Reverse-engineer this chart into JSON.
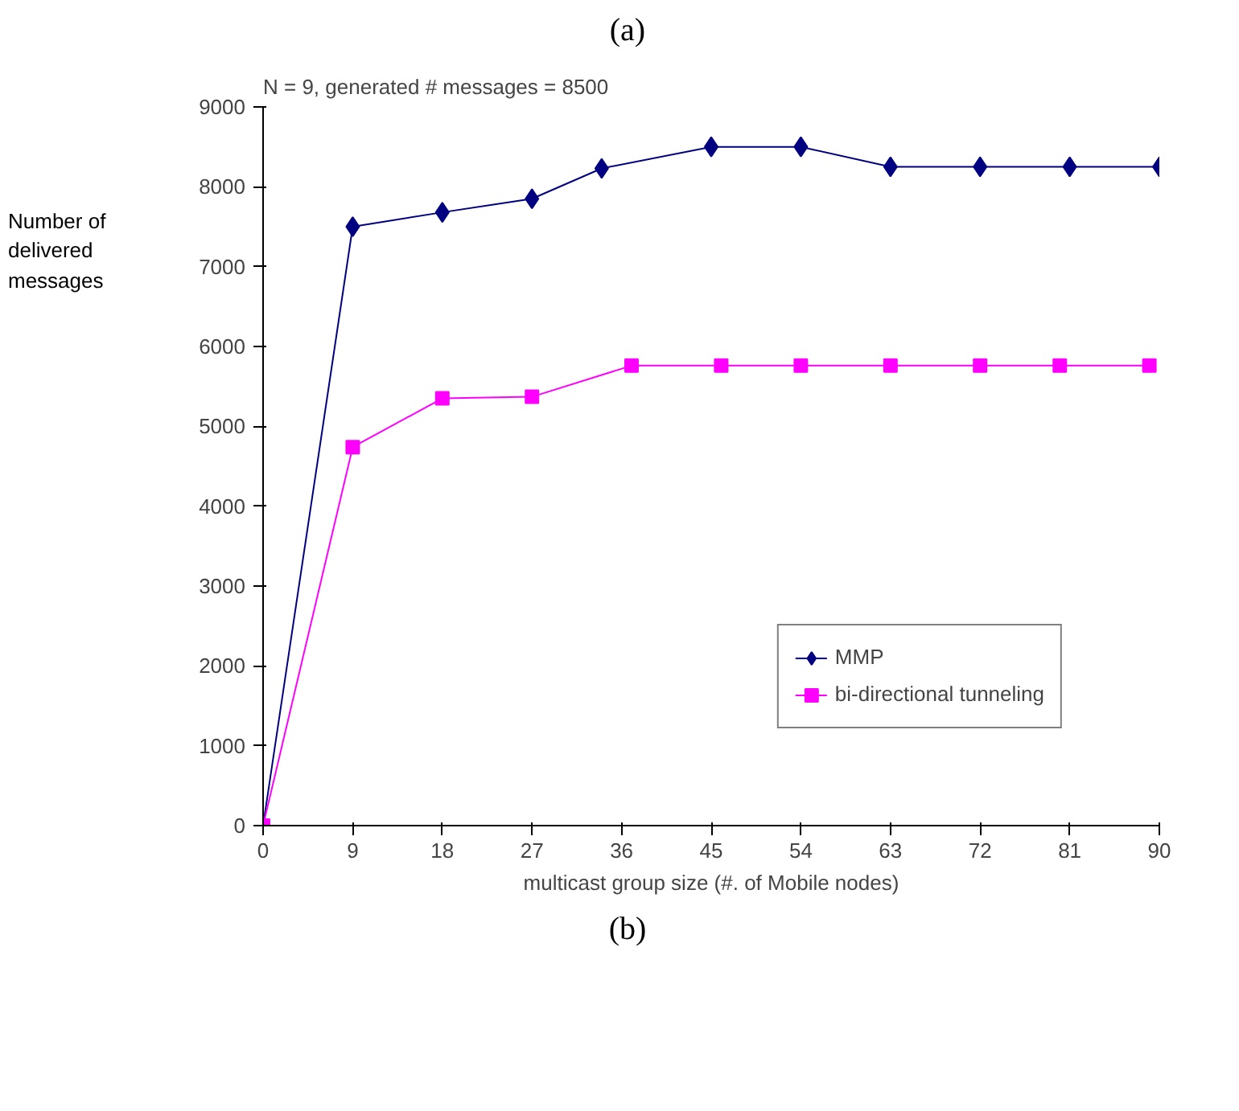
{
  "chart_data": {
    "type": "line",
    "title": "N = 9, generated # messages = 8500",
    "xlabel": "multicast group size (#. of Mobile nodes)",
    "ylabel": "Number of delivered messages",
    "annotations": [
      "(a)",
      "(b)"
    ],
    "xlim": [
      0,
      90
    ],
    "xticks": [
      0,
      9,
      18,
      27,
      36,
      45,
      54,
      63,
      72,
      81,
      90
    ],
    "ylim": [
      0,
      9000
    ],
    "yticks": [
      0,
      1000,
      2000,
      3000,
      4000,
      5000,
      6000,
      7000,
      8000,
      9000
    ],
    "grid": false,
    "legend": "bottom right",
    "series": [
      {
        "name": "MMP",
        "color": "#000080",
        "marker": "diamond",
        "x": [
          0,
          9,
          18,
          27,
          34,
          45,
          54,
          63,
          72,
          81,
          90
        ],
        "values": [
          0,
          7500,
          7680,
          7850,
          8230,
          8500,
          8500,
          8250,
          8250,
          8250,
          8250
        ]
      },
      {
        "name": "bi-directional tunneling",
        "color": "#ff00ff",
        "marker": "square",
        "x": [
          0,
          9,
          18,
          27,
          37,
          46,
          54,
          63,
          72,
          80,
          89
        ],
        "values": [
          0,
          4740,
          5350,
          5370,
          5760,
          5760,
          5760,
          5760,
          5760,
          5760,
          5760
        ]
      }
    ]
  }
}
